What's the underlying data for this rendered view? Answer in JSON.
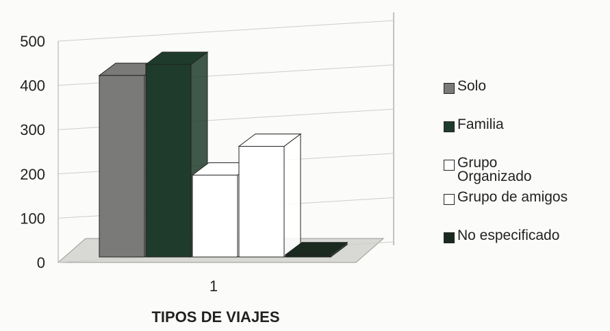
{
  "chart_data": {
    "type": "bar3d",
    "xlabel": "TIPOS DE VIAJES",
    "categories": [
      "1"
    ],
    "series": [
      {
        "name": "Solo",
        "color": "#7a7a78",
        "values": [
          410
        ]
      },
      {
        "name": "Familia",
        "color": "#1f3b2c",
        "values": [
          435
        ]
      },
      {
        "name": "Grupo Organizado",
        "color": "#ffffff",
        "values": [
          185
        ]
      },
      {
        "name": "Grupo de amigos",
        "color": "#ffffff",
        "values": [
          250
        ]
      },
      {
        "name": "No especificado",
        "color": "#1a2a1f",
        "values": [
          5
        ]
      }
    ],
    "ylim": [
      0,
      500
    ],
    "yticks": [
      0,
      100,
      200,
      300,
      400,
      500
    ],
    "grid": true,
    "legend": "right"
  }
}
